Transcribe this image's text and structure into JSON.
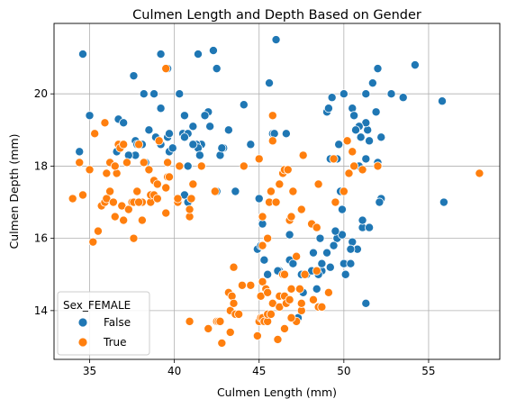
{
  "chart_data": {
    "type": "scatter",
    "title": "Culmen Length and Depth Based on Gender",
    "xlabel": "Culmen Length (mm)",
    "ylabel": "Culmen Depth (mm)",
    "xlim": [
      32.9,
      59.2
    ],
    "ylim": [
      12.65,
      21.95
    ],
    "xticks": [
      35,
      40,
      45,
      50,
      55
    ],
    "yticks": [
      14,
      16,
      18,
      20
    ],
    "grid": true,
    "legend": {
      "title": "Sex_FEMALE",
      "position": "lower-left"
    },
    "series": [
      {
        "name": "False",
        "color": "#1f77b4",
        "points": [
          [
            34.6,
            21.1
          ],
          [
            39.2,
            21.1
          ],
          [
            41.4,
            21.1
          ],
          [
            42.3,
            21.2
          ],
          [
            46.0,
            21.5
          ],
          [
            42.5,
            20.7
          ],
          [
            39.6,
            20.7
          ],
          [
            37.6,
            20.5
          ],
          [
            44.1,
            19.7
          ],
          [
            40.3,
            20.0
          ],
          [
            38.2,
            20.0
          ],
          [
            38.8,
            20.0
          ],
          [
            35.0,
            19.4
          ],
          [
            36.7,
            19.3
          ],
          [
            37.0,
            19.2
          ],
          [
            38.5,
            19.0
          ],
          [
            39.2,
            19.6
          ],
          [
            40.6,
            19.4
          ],
          [
            41.1,
            19.1
          ],
          [
            42.0,
            19.5
          ],
          [
            42.1,
            19.1
          ],
          [
            41.6,
            18.6
          ],
          [
            41.8,
            19.4
          ],
          [
            40.5,
            18.9
          ],
          [
            40.8,
            18.9
          ],
          [
            40.6,
            18.8
          ],
          [
            41.3,
            18.6
          ],
          [
            39.6,
            18.8
          ],
          [
            39.7,
            18.9
          ],
          [
            38.9,
            18.8
          ],
          [
            37.7,
            18.7
          ],
          [
            37.8,
            18.6
          ],
          [
            36.6,
            18.4
          ],
          [
            37.7,
            18.3
          ],
          [
            39.7,
            18.4
          ],
          [
            41.4,
            18.5
          ],
          [
            42.7,
            18.3
          ],
          [
            42.9,
            18.5
          ],
          [
            41.1,
            18.6
          ],
          [
            40.8,
            18.0
          ],
          [
            39.9,
            18.5
          ],
          [
            38.1,
            18.6
          ],
          [
            38.3,
            18.1
          ],
          [
            34.4,
            18.4
          ],
          [
            37.3,
            18.3
          ],
          [
            39.2,
            18.6
          ],
          [
            43.2,
            19.0
          ],
          [
            45.6,
            20.3
          ],
          [
            46.6,
            18.9
          ],
          [
            45.8,
            18.9
          ],
          [
            45.9,
            18.9
          ],
          [
            44.5,
            18.6
          ],
          [
            49.0,
            19.5
          ],
          [
            49.1,
            19.6
          ],
          [
            49.3,
            19.9
          ],
          [
            50.5,
            19.6
          ],
          [
            50.0,
            20.0
          ],
          [
            50.6,
            19.4
          ],
          [
            51.3,
            20.0
          ],
          [
            51.4,
            19.0
          ],
          [
            51.9,
            19.5
          ],
          [
            52.0,
            20.7
          ],
          [
            52.8,
            20.0
          ],
          [
            53.5,
            19.9
          ],
          [
            54.2,
            20.8
          ],
          [
            51.7,
            20.3
          ],
          [
            51.3,
            19.2
          ],
          [
            50.9,
            19.1
          ],
          [
            51.5,
            18.7
          ],
          [
            50.7,
            19.0
          ],
          [
            52.2,
            18.8
          ],
          [
            51.0,
            18.8
          ],
          [
            52.0,
            18.1
          ],
          [
            50.2,
            18.7
          ],
          [
            49.2,
            18.2
          ],
          [
            49.7,
            18.6
          ],
          [
            49.6,
            18.2
          ],
          [
            51.3,
            18.2
          ],
          [
            50.9,
            18.0
          ],
          [
            49.8,
            17.3
          ],
          [
            52.2,
            17.1
          ],
          [
            52.1,
            17.0
          ],
          [
            55.8,
            19.8
          ],
          [
            55.9,
            17.0
          ],
          [
            50.5,
            15.9
          ],
          [
            50.1,
            15.3
          ],
          [
            49.8,
            16.1
          ],
          [
            50.8,
            15.7
          ],
          [
            50.1,
            15.0
          ],
          [
            51.1,
            16.3
          ],
          [
            51.1,
            16.5
          ],
          [
            51.5,
            16.3
          ],
          [
            50.4,
            15.7
          ],
          [
            49.6,
            16.0
          ],
          [
            49.9,
            16.1
          ],
          [
            49.2,
            15.2
          ],
          [
            49.5,
            16.2
          ],
          [
            48.7,
            15.1
          ],
          [
            48.2,
            15.6
          ],
          [
            48.5,
            15.0
          ],
          [
            49.0,
            15.6
          ],
          [
            49.4,
            15.8
          ],
          [
            48.6,
            16.0
          ],
          [
            47.8,
            15.0
          ],
          [
            47.6,
            14.5
          ],
          [
            46.8,
            15.4
          ],
          [
            46.2,
            15.1
          ],
          [
            46.1,
            15.1
          ],
          [
            45.5,
            15.0
          ],
          [
            45.3,
            15.4
          ],
          [
            44.9,
            15.7
          ],
          [
            45.1,
            15.8
          ],
          [
            45.2,
            16.4
          ],
          [
            46.5,
            15.0
          ],
          [
            46.8,
            16.1
          ],
          [
            47.0,
            15.3
          ],
          [
            47.5,
            15.0
          ],
          [
            48.4,
            14.6
          ],
          [
            48.1,
            15.1
          ],
          [
            47.3,
            13.8
          ],
          [
            50.0,
            15.3
          ],
          [
            50.4,
            15.3
          ],
          [
            51.3,
            14.2
          ],
          [
            40.6,
            17.2
          ],
          [
            40.8,
            17.0
          ],
          [
            41.0,
            17.1
          ],
          [
            41.5,
            18.3
          ],
          [
            42.5,
            17.3
          ],
          [
            43.6,
            17.3
          ],
          [
            45.0,
            17.1
          ],
          [
            47.6,
            18.3
          ],
          [
            48.7,
            15.3
          ],
          [
            42.8,
            18.5
          ],
          [
            39.0,
            17.5
          ],
          [
            49.9,
            16.8
          ]
        ]
      },
      {
        "name": "True",
        "color": "#ff7f0e",
        "points": [
          [
            39.5,
            20.7
          ],
          [
            34.0,
            17.1
          ],
          [
            34.4,
            18.1
          ],
          [
            34.6,
            17.2
          ],
          [
            35.0,
            17.9
          ],
          [
            35.2,
            15.9
          ],
          [
            35.3,
            18.9
          ],
          [
            35.5,
            16.2
          ],
          [
            35.7,
            16.9
          ],
          [
            35.9,
            19.2
          ],
          [
            35.9,
            17.0
          ],
          [
            36.0,
            17.1
          ],
          [
            36.0,
            17.8
          ],
          [
            36.2,
            17.3
          ],
          [
            36.2,
            18.1
          ],
          [
            36.4,
            17.0
          ],
          [
            36.5,
            16.6
          ],
          [
            36.6,
            17.8
          ],
          [
            36.7,
            18.6
          ],
          [
            36.8,
            18.5
          ],
          [
            36.9,
            16.9
          ],
          [
            37.0,
            16.5
          ],
          [
            37.2,
            18.1
          ],
          [
            37.3,
            16.8
          ],
          [
            37.5,
            17.0
          ],
          [
            37.6,
            16.0
          ],
          [
            37.6,
            17.0
          ],
          [
            37.8,
            17.3
          ],
          [
            37.9,
            18.6
          ],
          [
            38.1,
            16.5
          ],
          [
            38.1,
            17.0
          ],
          [
            38.2,
            18.1
          ],
          [
            38.5,
            17.9
          ],
          [
            38.6,
            17.0
          ],
          [
            38.6,
            17.2
          ],
          [
            38.8,
            17.6
          ],
          [
            38.8,
            17.2
          ],
          [
            39.0,
            17.1
          ],
          [
            39.0,
            17.5
          ],
          [
            39.1,
            18.7
          ],
          [
            39.5,
            16.7
          ],
          [
            39.5,
            17.4
          ],
          [
            39.6,
            17.7
          ],
          [
            39.6,
            18.1
          ],
          [
            39.7,
            17.7
          ],
          [
            40.2,
            17.0
          ],
          [
            40.2,
            17.1
          ],
          [
            40.3,
            18.0
          ],
          [
            40.9,
            16.6
          ],
          [
            40.9,
            16.8
          ],
          [
            41.1,
            17.5
          ],
          [
            37.0,
            18.6
          ],
          [
            37.9,
            17.0
          ],
          [
            36.5,
            18.0
          ],
          [
            40.9,
            13.7
          ],
          [
            42.0,
            13.5
          ],
          [
            42.4,
            17.3
          ],
          [
            42.5,
            13.7
          ],
          [
            42.6,
            13.7
          ],
          [
            42.7,
            13.7
          ],
          [
            42.8,
            13.1
          ],
          [
            43.2,
            14.5
          ],
          [
            43.3,
            14.0
          ],
          [
            43.3,
            13.4
          ],
          [
            43.4,
            14.4
          ],
          [
            43.5,
            14.2
          ],
          [
            43.5,
            15.2
          ],
          [
            43.6,
            13.9
          ],
          [
            43.8,
            13.9
          ],
          [
            44.1,
            18.0
          ],
          [
            44.5,
            14.7
          ],
          [
            44.9,
            13.3
          ],
          [
            45.0,
            13.7
          ],
          [
            45.1,
            13.8
          ],
          [
            45.1,
            14.4
          ],
          [
            45.2,
            13.8
          ],
          [
            45.2,
            14.8
          ],
          [
            45.2,
            16.6
          ],
          [
            45.3,
            13.7
          ],
          [
            45.4,
            14.6
          ],
          [
            45.5,
            13.7
          ],
          [
            45.5,
            13.9
          ],
          [
            45.5,
            14.5
          ],
          [
            45.6,
            17.0
          ],
          [
            45.7,
            13.9
          ],
          [
            45.7,
            17.3
          ],
          [
            45.8,
            14.2
          ],
          [
            45.8,
            18.7
          ],
          [
            45.8,
            19.4
          ],
          [
            46.0,
            17.0
          ],
          [
            46.1,
            13.2
          ],
          [
            46.2,
            14.1
          ],
          [
            46.2,
            14.4
          ],
          [
            46.2,
            17.5
          ],
          [
            46.4,
            15.0
          ],
          [
            46.4,
            17.8
          ],
          [
            46.5,
            13.5
          ],
          [
            46.5,
            14.4
          ],
          [
            46.5,
            17.9
          ],
          [
            46.6,
            14.2
          ],
          [
            46.7,
            17.9
          ],
          [
            46.8,
            14.3
          ],
          [
            46.8,
            16.5
          ],
          [
            46.9,
            14.6
          ],
          [
            46.9,
            16.6
          ],
          [
            47.0,
            17.3
          ],
          [
            47.2,
            13.7
          ],
          [
            47.2,
            15.5
          ],
          [
            47.5,
            14.0
          ],
          [
            47.5,
            16.8
          ],
          [
            47.6,
            18.3
          ],
          [
            47.7,
            15.0
          ],
          [
            48.1,
            16.4
          ],
          [
            48.2,
            14.3
          ],
          [
            48.4,
            16.3
          ],
          [
            48.5,
            14.1
          ],
          [
            48.5,
            17.5
          ],
          [
            48.7,
            14.1
          ],
          [
            49.1,
            14.5
          ],
          [
            49.4,
            18.2
          ],
          [
            49.5,
            17.0
          ],
          [
            50.0,
            17.3
          ],
          [
            50.2,
            18.7
          ],
          [
            50.3,
            17.8
          ],
          [
            50.5,
            18.4
          ],
          [
            50.6,
            18.0
          ],
          [
            51.1,
            17.9
          ],
          [
            52.0,
            18.0
          ],
          [
            58.0,
            17.8
          ],
          [
            45.5,
            16.0
          ],
          [
            45.2,
            15.8
          ],
          [
            44.0,
            14.7
          ],
          [
            46.5,
            15.0
          ],
          [
            45.0,
            18.2
          ],
          [
            46.9,
            13.8
          ],
          [
            48.4,
            15.1
          ],
          [
            47.4,
            14.6
          ],
          [
            47.5,
            14.2
          ],
          [
            41.6,
            18.0
          ],
          [
            41.0,
            17.1
          ]
        ]
      }
    ]
  }
}
